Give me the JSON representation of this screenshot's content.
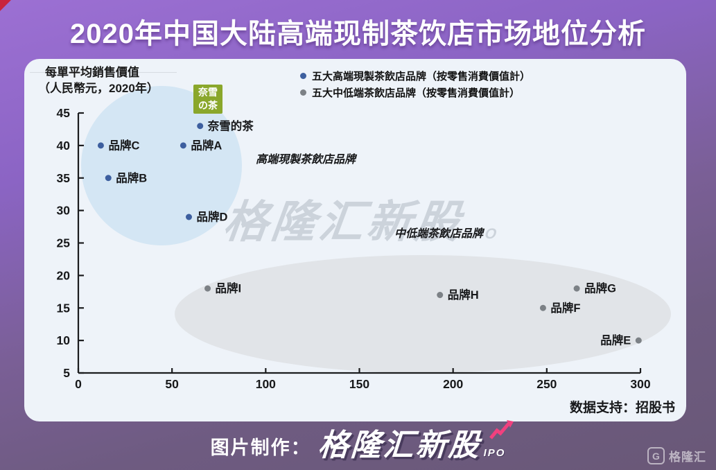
{
  "page": {
    "title": "2020年中国大陆高端现制茶饮店市场地位分析",
    "footer": {
      "credit_label": "图片制作：",
      "brand_name": "格隆汇新股",
      "brand_suffix": "IPO",
      "corner_logo_letter": "G",
      "corner_logo_text": "格隆汇"
    },
    "colors": {
      "background_top": "#9c70d3",
      "background_bottom": "#695877",
      "panel": "#eef3f9",
      "accent_pink": "#f2407e",
      "corner_red": "#c9243e",
      "nayuki_green": "#8aa72b",
      "axis": "#1b1c1e"
    }
  },
  "chart_data": {
    "type": "scatter",
    "title": "2020年中国大陆高端现制茶饮店市场地位分析",
    "y_axis_title_line1": "每單平均銷售價值",
    "y_axis_title_line2": "（人民幣元，2020年）",
    "xlabel": "",
    "ylabel": "每單平均銷售價值（人民幣元，2020年）",
    "xlim": [
      0,
      300
    ],
    "ylim": [
      5,
      45
    ],
    "x_ticks": [
      0,
      50,
      100,
      150,
      200,
      250,
      300
    ],
    "y_ticks": [
      45,
      40,
      35,
      30,
      25,
      20,
      15,
      10,
      5
    ],
    "grid": false,
    "legend_position": "top-center",
    "legend": [
      {
        "label": "五大高端現製茶飲店品牌（按零售消費價值計）",
        "color": "#3d5f9f"
      },
      {
        "label": "五大中低端茶飲店品牌（按零售消費價值計）",
        "color": "#7c8186"
      }
    ],
    "clusters": [
      {
        "label": "高端現製茶飲店品牌",
        "fill": "#d0e4f3"
      },
      {
        "label": "中低端茶飲店品牌",
        "fill": "#dfe3e6"
      }
    ],
    "series": [
      {
        "name": "五大高端現製茶飲店品牌（按零售消費價值計）",
        "color": "#3d5f9f",
        "points": [
          {
            "label": "奈雪的茶",
            "x": 65,
            "y": 43,
            "label_side": "right"
          },
          {
            "label": "品牌A",
            "x": 56,
            "y": 40,
            "label_side": "right"
          },
          {
            "label": "品牌B",
            "x": 16,
            "y": 35,
            "label_side": "right"
          },
          {
            "label": "品牌C",
            "x": 12,
            "y": 40,
            "label_side": "right"
          },
          {
            "label": "品牌D",
            "x": 59,
            "y": 29,
            "label_side": "right"
          }
        ]
      },
      {
        "name": "五大中低端茶飲店品牌（按零售消費價值計）",
        "color": "#7c8186",
        "points": [
          {
            "label": "品牌E",
            "x": 299,
            "y": 10,
            "label_side": "left"
          },
          {
            "label": "品牌F",
            "x": 248,
            "y": 15,
            "label_side": "right"
          },
          {
            "label": "品牌G",
            "x": 266,
            "y": 18,
            "label_side": "right"
          },
          {
            "label": "品牌H",
            "x": 193,
            "y": 17,
            "label_side": "right"
          },
          {
            "label": "品牌I",
            "x": 69,
            "y": 18,
            "label_side": "right"
          }
        ]
      }
    ],
    "nayuki_logo_line1": "奈雪",
    "nayuki_logo_line2": "の茶",
    "watermark": "格隆汇新股",
    "watermark_suffix": "IPO",
    "source_note": "数据支持：招股书"
  }
}
